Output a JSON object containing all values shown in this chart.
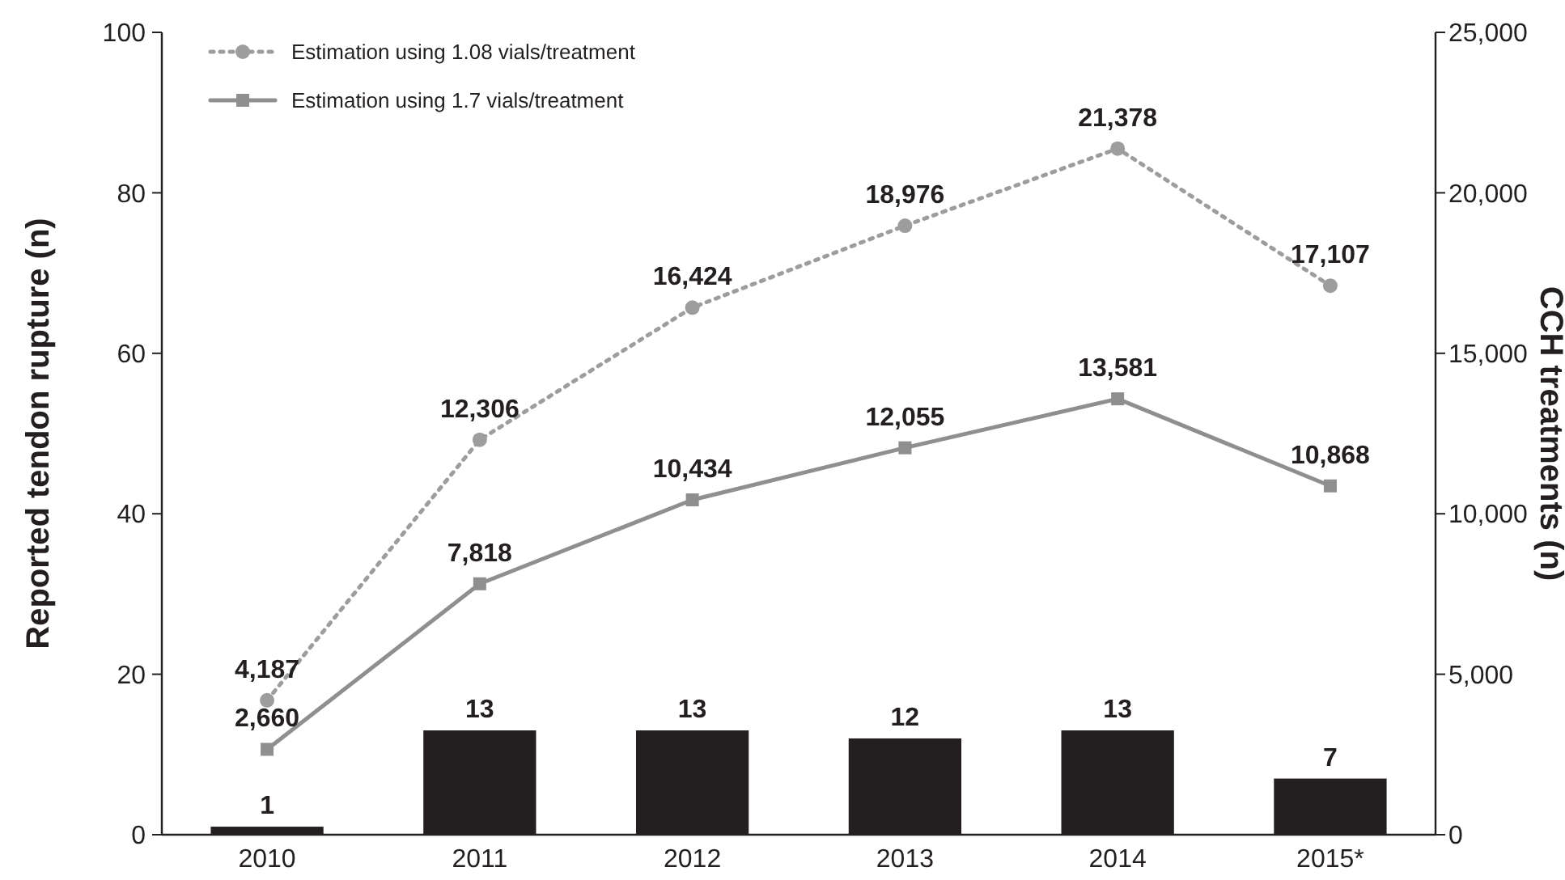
{
  "chart_data": {
    "type": "bar",
    "categories": [
      "2010",
      "2011",
      "2012",
      "2013",
      "2014",
      "2015*"
    ],
    "ylabel": "Reported tendon rupture (n)",
    "y2label": "CCH treatments (n)",
    "ylim": [
      0,
      100
    ],
    "yticks": [
      0,
      20,
      40,
      60,
      80,
      100
    ],
    "y2lim": [
      0,
      25000
    ],
    "y2ticks": [
      {
        "value": 0,
        "label": "0"
      },
      {
        "value": 5000,
        "label": "5,000"
      },
      {
        "value": 10000,
        "label": "10,000"
      },
      {
        "value": 15000,
        "label": "15,000"
      },
      {
        "value": 20000,
        "label": "20,000"
      },
      {
        "value": 25000,
        "label": "25,000"
      }
    ],
    "data_labels": true,
    "legend": "top left",
    "grid": false,
    "series": [
      {
        "color": "#231f20",
        "values": [
          1,
          13,
          13,
          12,
          13,
          7
        ]
      },
      {
        "type": "line",
        "name": "Estimation using 1.08 vials/treatment",
        "color": "#9d9d9d",
        "axis": "y2",
        "marker": "circle",
        "line_style": "dotted",
        "values": [
          4187,
          12306,
          16424,
          18976,
          21378,
          17107
        ],
        "value_labels": [
          "4,187",
          "12,306",
          "16,424",
          "18,976",
          "21,378",
          "17,107"
        ]
      },
      {
        "type": "line",
        "name": "Estimation using 1.7 vials/treatment",
        "color": "#8f8f8f",
        "axis": "y2",
        "marker": "square",
        "line_style": "solid",
        "values": [
          2660,
          7818,
          10434,
          12055,
          13581,
          10868
        ],
        "value_labels": [
          "2,660",
          "7,818",
          "10,434",
          "12,055",
          "13,581",
          "10,868"
        ]
      }
    ]
  }
}
